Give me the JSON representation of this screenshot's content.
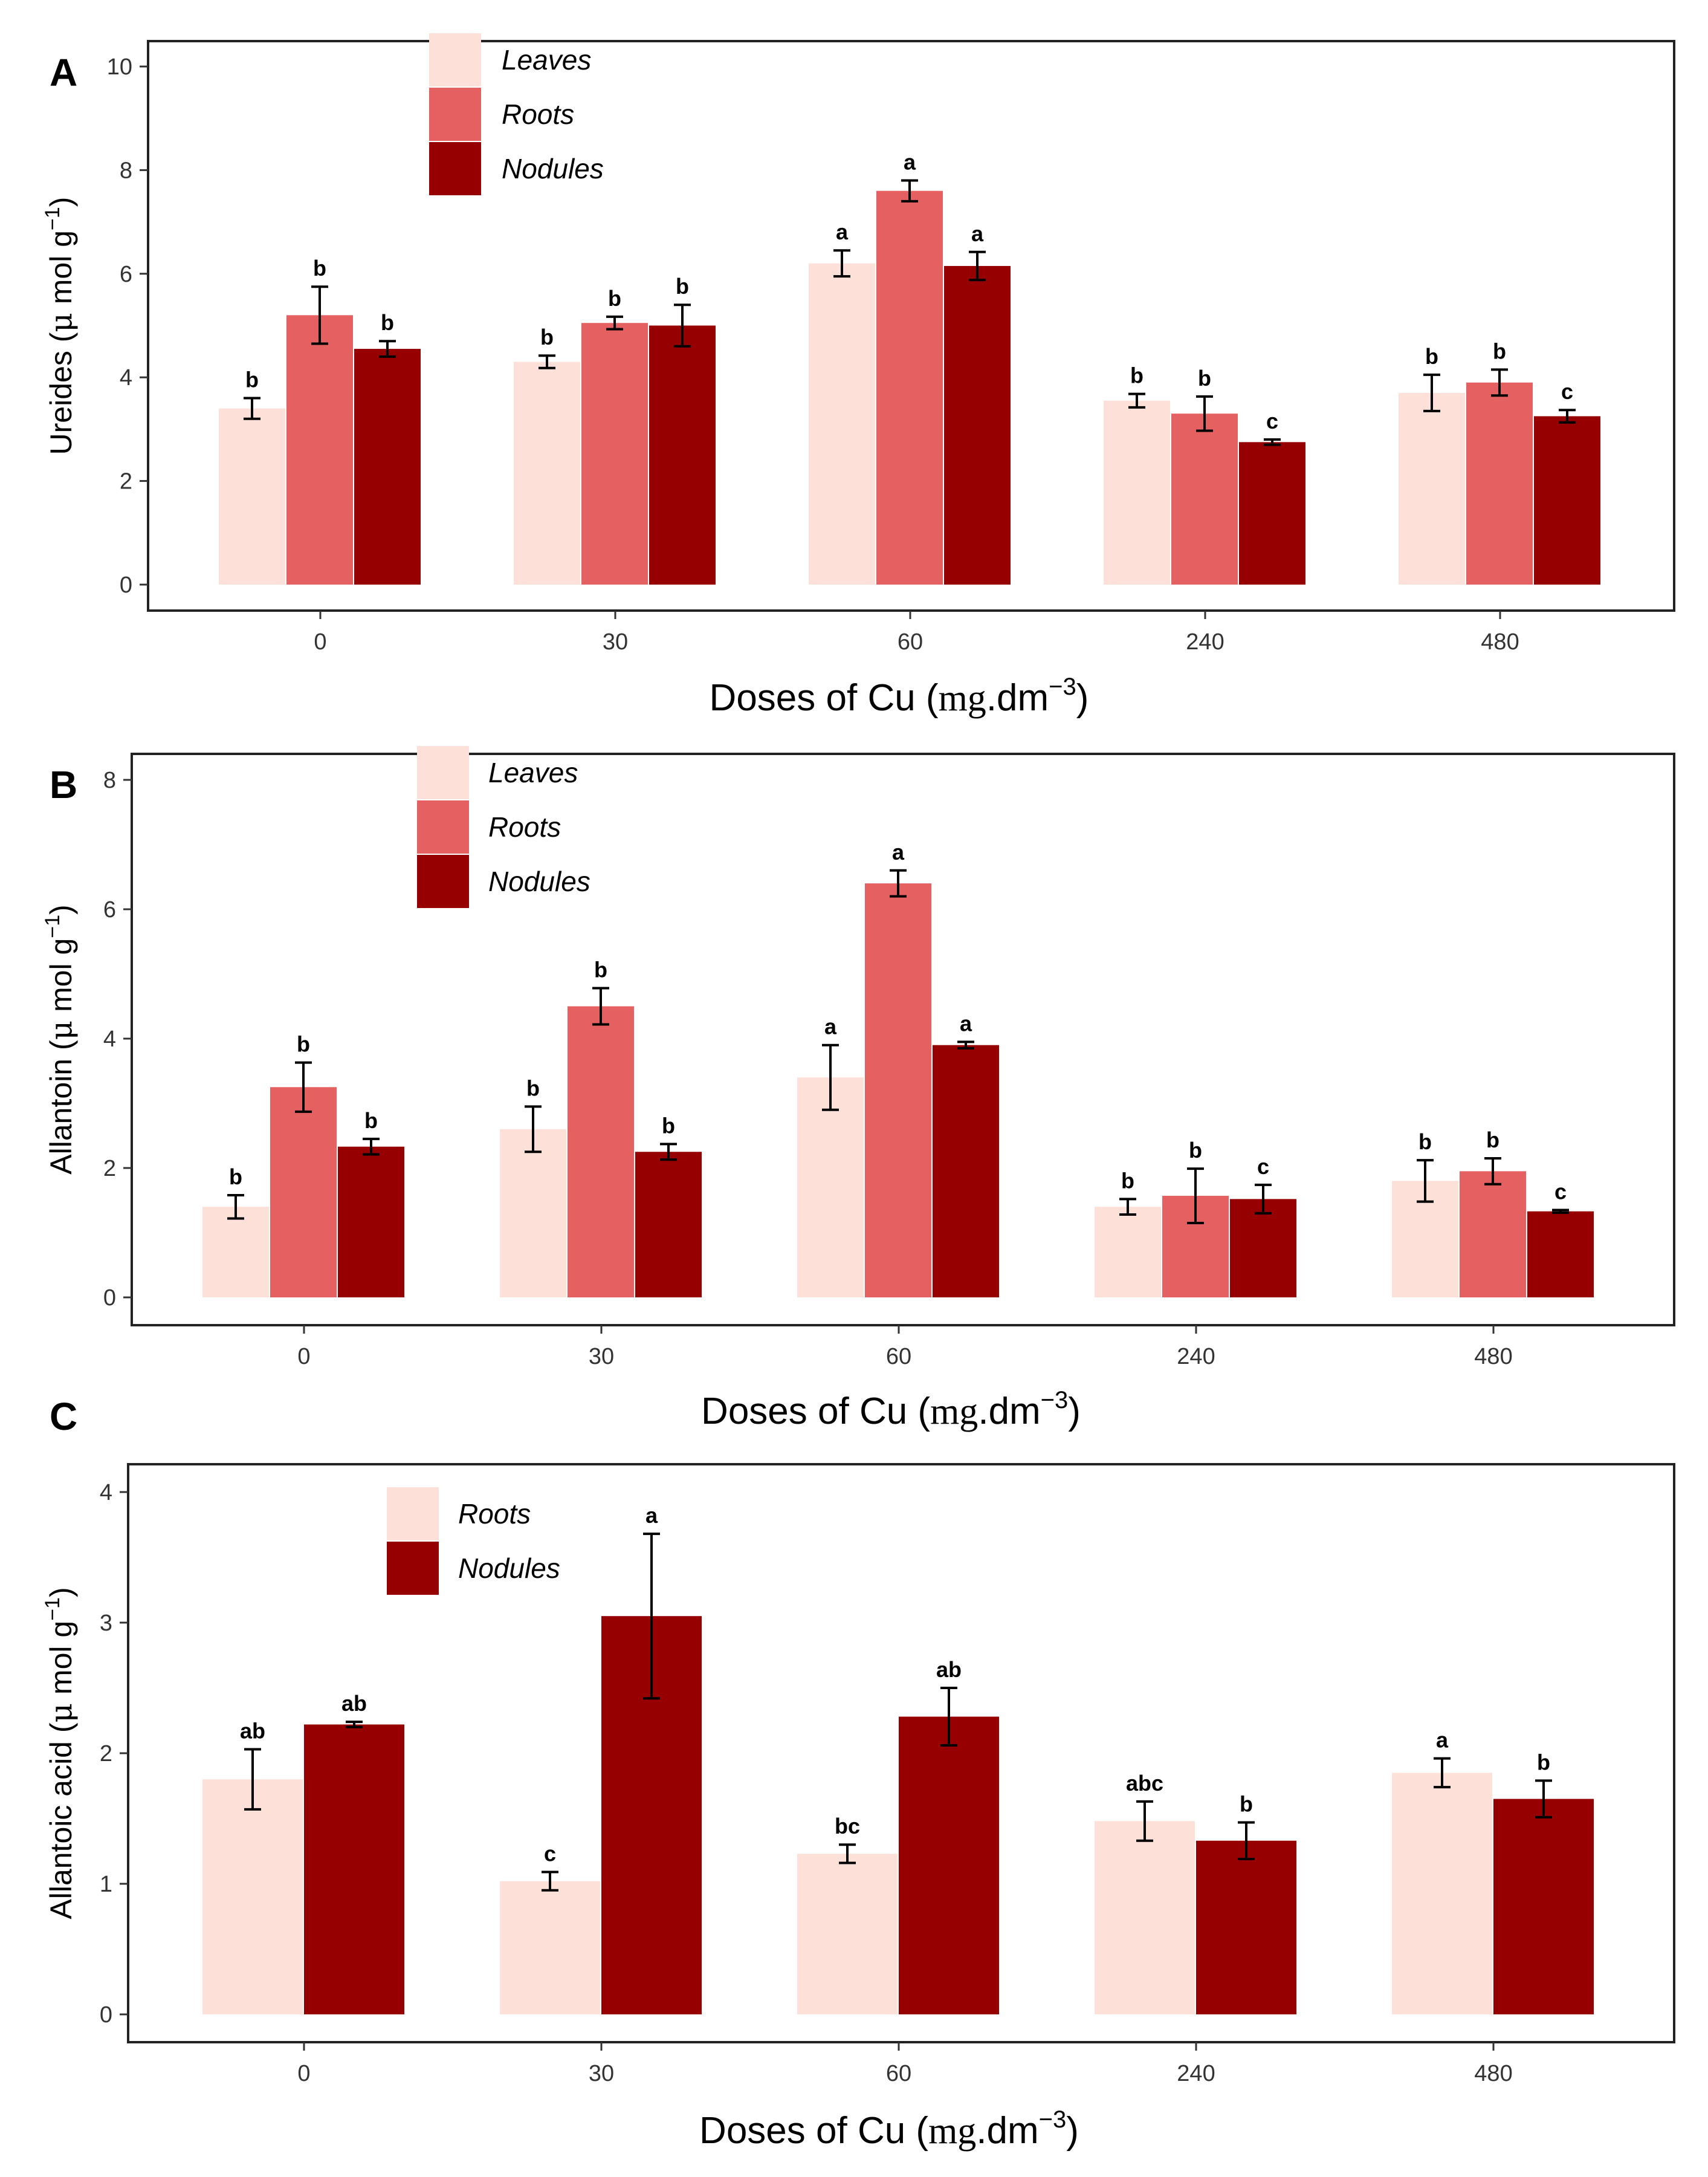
{
  "colors": {
    "leaves": "#fde0d8",
    "roots": "#e56060",
    "nodules": "#960000",
    "roots_c": "#fde0d8",
    "nodules_c": "#960000"
  },
  "chart_data": [
    {
      "type": "bar",
      "panel_label": "A",
      "categories": [
        "0",
        "30",
        "60",
        "240",
        "480"
      ],
      "xlabel_main": "Doses of Cu (",
      "xlabel_unit": "mg",
      "xlabel_rest": ".dm",
      "xlabel_exp": "−3",
      "xlabel_close": ")",
      "ylabel_main": "Ureides (",
      "ylabel_mu": "μ",
      "ylabel_unit": " mol g",
      "ylabel_exp": "−1",
      "ylabel_close": ")",
      "ylim": [
        0,
        10
      ],
      "yticks": [
        "0",
        "2",
        "4",
        "6",
        "8",
        "10"
      ],
      "legend_position": "top-left",
      "series": [
        {
          "name": "Leaves",
          "color_key": "leaves",
          "values": [
            3.4,
            4.3,
            6.2,
            3.55,
            3.7
          ],
          "errors": [
            0.2,
            0.12,
            0.25,
            0.13,
            0.35
          ],
          "letters": [
            "b",
            "b",
            "a",
            "b",
            "b"
          ]
        },
        {
          "name": "Roots",
          "color_key": "roots",
          "values": [
            5.2,
            5.05,
            7.6,
            3.3,
            3.9
          ],
          "errors": [
            0.55,
            0.12,
            0.2,
            0.33,
            0.25
          ],
          "letters": [
            "b",
            "b",
            "a",
            "b",
            "b"
          ]
        },
        {
          "name": "Nodules",
          "color_key": "nodules",
          "values": [
            4.55,
            5.0,
            6.15,
            2.75,
            3.25
          ],
          "errors": [
            0.15,
            0.4,
            0.27,
            0.05,
            0.12
          ],
          "letters": [
            "b",
            "b",
            "a",
            "c",
            "c"
          ]
        }
      ]
    },
    {
      "type": "bar",
      "panel_label": "B",
      "categories": [
        "0",
        "30",
        "60",
        "240",
        "480"
      ],
      "xlabel_main": "Doses of Cu (",
      "xlabel_unit": "mg",
      "xlabel_rest": ".dm",
      "xlabel_exp": "−3",
      "xlabel_close": ")",
      "ylabel_main": "Allantoin (",
      "ylabel_mu": "μ",
      "ylabel_unit": " mol g",
      "ylabel_exp": "−1",
      "ylabel_close": ")",
      "ylim": [
        0,
        8
      ],
      "yticks": [
        "0",
        "2",
        "4",
        "6",
        "8"
      ],
      "legend_position": "top-left",
      "series": [
        {
          "name": "Leaves",
          "color_key": "leaves",
          "values": [
            1.4,
            2.6,
            3.4,
            1.4,
            1.8
          ],
          "errors": [
            0.18,
            0.35,
            0.5,
            0.12,
            0.32
          ],
          "letters": [
            "b",
            "b",
            "a",
            "b",
            "b"
          ]
        },
        {
          "name": "Roots",
          "color_key": "roots",
          "values": [
            3.25,
            4.5,
            6.4,
            1.57,
            1.95
          ],
          "errors": [
            0.38,
            0.28,
            0.2,
            0.42,
            0.2
          ],
          "letters": [
            "b",
            "b",
            "a",
            "b",
            "b"
          ]
        },
        {
          "name": "Nodules",
          "color_key": "nodules",
          "values": [
            2.33,
            2.25,
            3.9,
            1.52,
            1.33
          ],
          "errors": [
            0.12,
            0.12,
            0.05,
            0.22,
            0.02
          ],
          "letters": [
            "b",
            "b",
            "a",
            "c",
            "c"
          ]
        }
      ]
    },
    {
      "type": "bar",
      "panel_label": "C",
      "categories": [
        "0",
        "30",
        "60",
        "240",
        "480"
      ],
      "xlabel_main": "Doses of Cu (",
      "xlabel_unit": "mg",
      "xlabel_rest": ".dm",
      "xlabel_exp": "−3",
      "xlabel_close": ")",
      "ylabel_main": "Allantoic acid (",
      "ylabel_mu": "μ",
      "ylabel_unit": " mol g",
      "ylabel_exp": "−1",
      "ylabel_close": ")",
      "ylim": [
        0,
        4
      ],
      "yticks": [
        "0",
        "1",
        "2",
        "3",
        "4"
      ],
      "legend_position": "top-left",
      "series": [
        {
          "name": "Roots",
          "color_key": "roots_c",
          "values": [
            1.8,
            1.02,
            1.23,
            1.48,
            1.85
          ],
          "errors": [
            0.23,
            0.07,
            0.07,
            0.15,
            0.11
          ],
          "letters": [
            "ab",
            "c",
            "bc",
            "abc",
            "a"
          ]
        },
        {
          "name": "Nodules",
          "color_key": "nodules_c",
          "values": [
            2.22,
            3.05,
            2.28,
            1.33,
            1.65
          ],
          "errors": [
            0.02,
            0.63,
            0.22,
            0.14,
            0.14
          ],
          "letters": [
            "ab",
            "a",
            "ab",
            "b",
            "b"
          ]
        }
      ]
    }
  ]
}
